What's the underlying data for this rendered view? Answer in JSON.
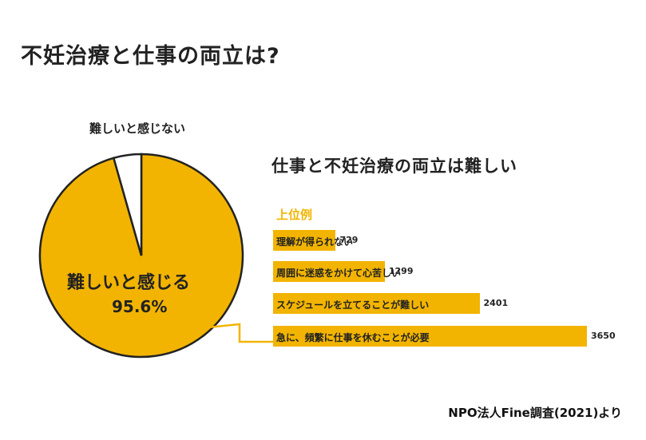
{
  "title": "不妊治療と仕事の両立は?",
  "colors": {
    "accent": "#f2b400",
    "ink": "#222222",
    "background": "#ffffff"
  },
  "chart_data": [
    {
      "type": "pie",
      "slices": [
        {
          "label": "難しいと感じる",
          "value": 95.6,
          "value_label": "95.6%",
          "color": "#f2b400"
        },
        {
          "label": "難しいと感じない",
          "value": 4.4,
          "color": "#ffffff"
        }
      ]
    },
    {
      "type": "bar",
      "orientation": "horizontal",
      "title": "仕事と不妊治療の両立は難しい",
      "subtitle": "上位例",
      "categories": [
        "理解が得られない",
        "周囲に迷惑をかけて心苦しい",
        "スケジュールを立てることが難しい",
        "急に、頻繁に仕事を休むことが必要"
      ],
      "values": [
        729,
        1299,
        2401,
        3650
      ],
      "xlim": [
        0,
        3650
      ]
    }
  ],
  "source": "NPO法人Fine調査(2021)より"
}
